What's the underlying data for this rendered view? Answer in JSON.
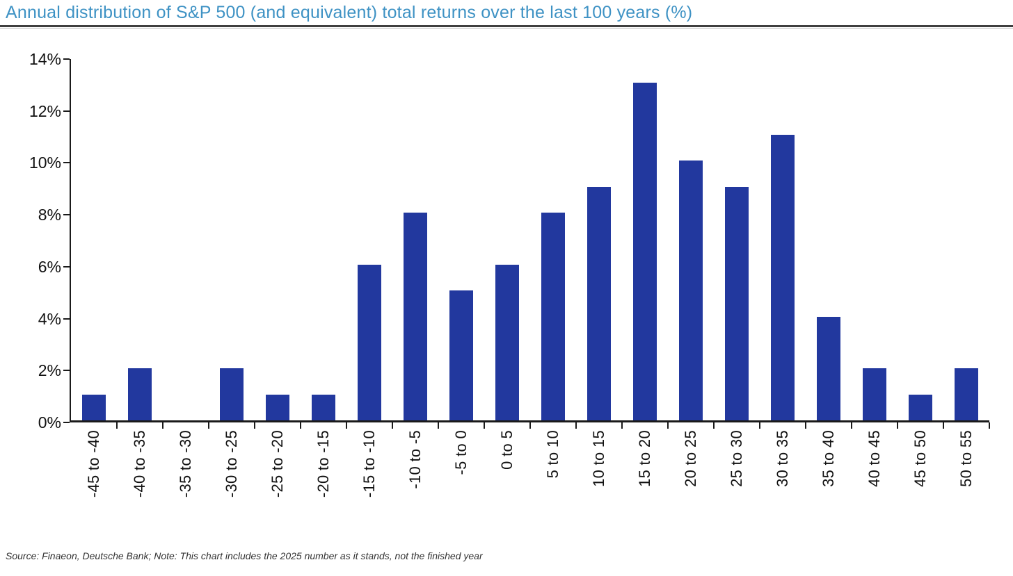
{
  "page": {
    "source_note": "Source: Finaeon, Deutsche Bank; Note: This chart includes the 2025 number as it stands, not the finished year"
  },
  "colors": {
    "title_blue": "#3E92C4",
    "rule_dark": "#3f3f3f",
    "bar_blue": "#22389E",
    "axis_black": "#1a1a1a",
    "label_black": "#111111"
  },
  "chart_data": {
    "type": "bar",
    "title": "Annual distribution of S&P 500 (and equivalent) total returns over the last 100 years (%)",
    "categories": [
      "-45 to -40",
      "-40 to -35",
      "-35 to -30",
      "-30 to -25",
      "-25 to -20",
      "-20 to -15",
      "-15 to -10",
      "-10 to -5",
      "-5 to 0",
      "0 to 5",
      "5 to 10",
      "10 to 15",
      "15 to 20",
      "20 to 25",
      "25 to 30",
      "30 to 35",
      "35 to 40",
      "40 to 45",
      "45 to 50",
      "50 to 55"
    ],
    "values": [
      1,
      2,
      0,
      2,
      1,
      1,
      6,
      8,
      5,
      6,
      8,
      9,
      13,
      10,
      9,
      11,
      4,
      2,
      1,
      2
    ],
    "xlabel": "",
    "ylabel": "",
    "y_tick_labels": [
      "0%",
      "2%",
      "4%",
      "6%",
      "8%",
      "10%",
      "12%",
      "14%"
    ],
    "y_ticks": [
      0,
      2,
      4,
      6,
      8,
      10,
      12,
      14
    ],
    "ylim": [
      0,
      14
    ],
    "grid": false,
    "legend_position": "none",
    "bar_color": "#22389E"
  }
}
